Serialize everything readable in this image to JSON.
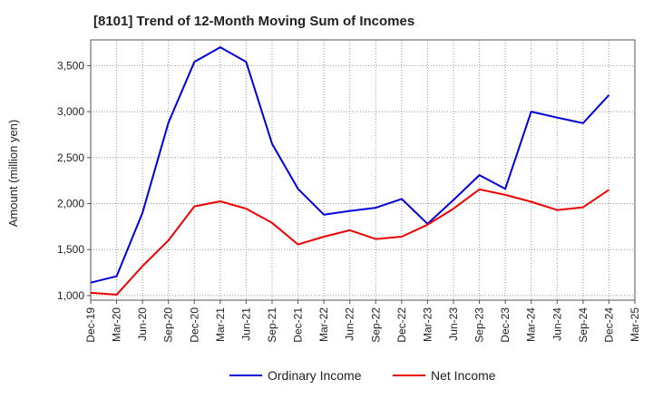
{
  "chart_data": {
    "type": "line",
    "title": "[8101]  Trend of 12-Month Moving Sum of Incomes",
    "xlabel": "",
    "ylabel": "Amount (million yen)",
    "ylim": [
      950,
      3780
    ],
    "yticks": [
      "1,000",
      "1,500",
      "2,000",
      "2,500",
      "3,000",
      "3,500"
    ],
    "ytick_values": [
      1000,
      1500,
      2000,
      2500,
      3000,
      3500
    ],
    "grid": true,
    "legend_position": "bottom",
    "categories": [
      "Dec-19",
      "Mar-20",
      "Jun-20",
      "Sep-20",
      "Dec-20",
      "Mar-21",
      "Jun-21",
      "Sep-21",
      "Dec-21",
      "Mar-22",
      "Jun-22",
      "Sep-22",
      "Dec-22",
      "Mar-23",
      "Jun-23",
      "Sep-23",
      "Dec-23",
      "Mar-24",
      "Jun-24",
      "Sep-24",
      "Dec-24",
      "Mar-25"
    ],
    "series": [
      {
        "name": "Ordinary Income",
        "color": "#0000dd",
        "values": [
          1140,
          1210,
          1900,
          2880,
          3540,
          3700,
          3540,
          2650,
          2160,
          1880,
          1920,
          1955,
          2050,
          1780,
          2040,
          2310,
          2160,
          3000,
          2935,
          2875,
          3180,
          null
        ]
      },
      {
        "name": "Net Income",
        "color": "#ee0000",
        "values": [
          1030,
          1010,
          1320,
          1600,
          1970,
          2025,
          1945,
          1790,
          1555,
          1640,
          1710,
          1615,
          1640,
          1770,
          1945,
          2155,
          2095,
          2020,
          1930,
          1960,
          2150,
          null
        ]
      }
    ]
  }
}
